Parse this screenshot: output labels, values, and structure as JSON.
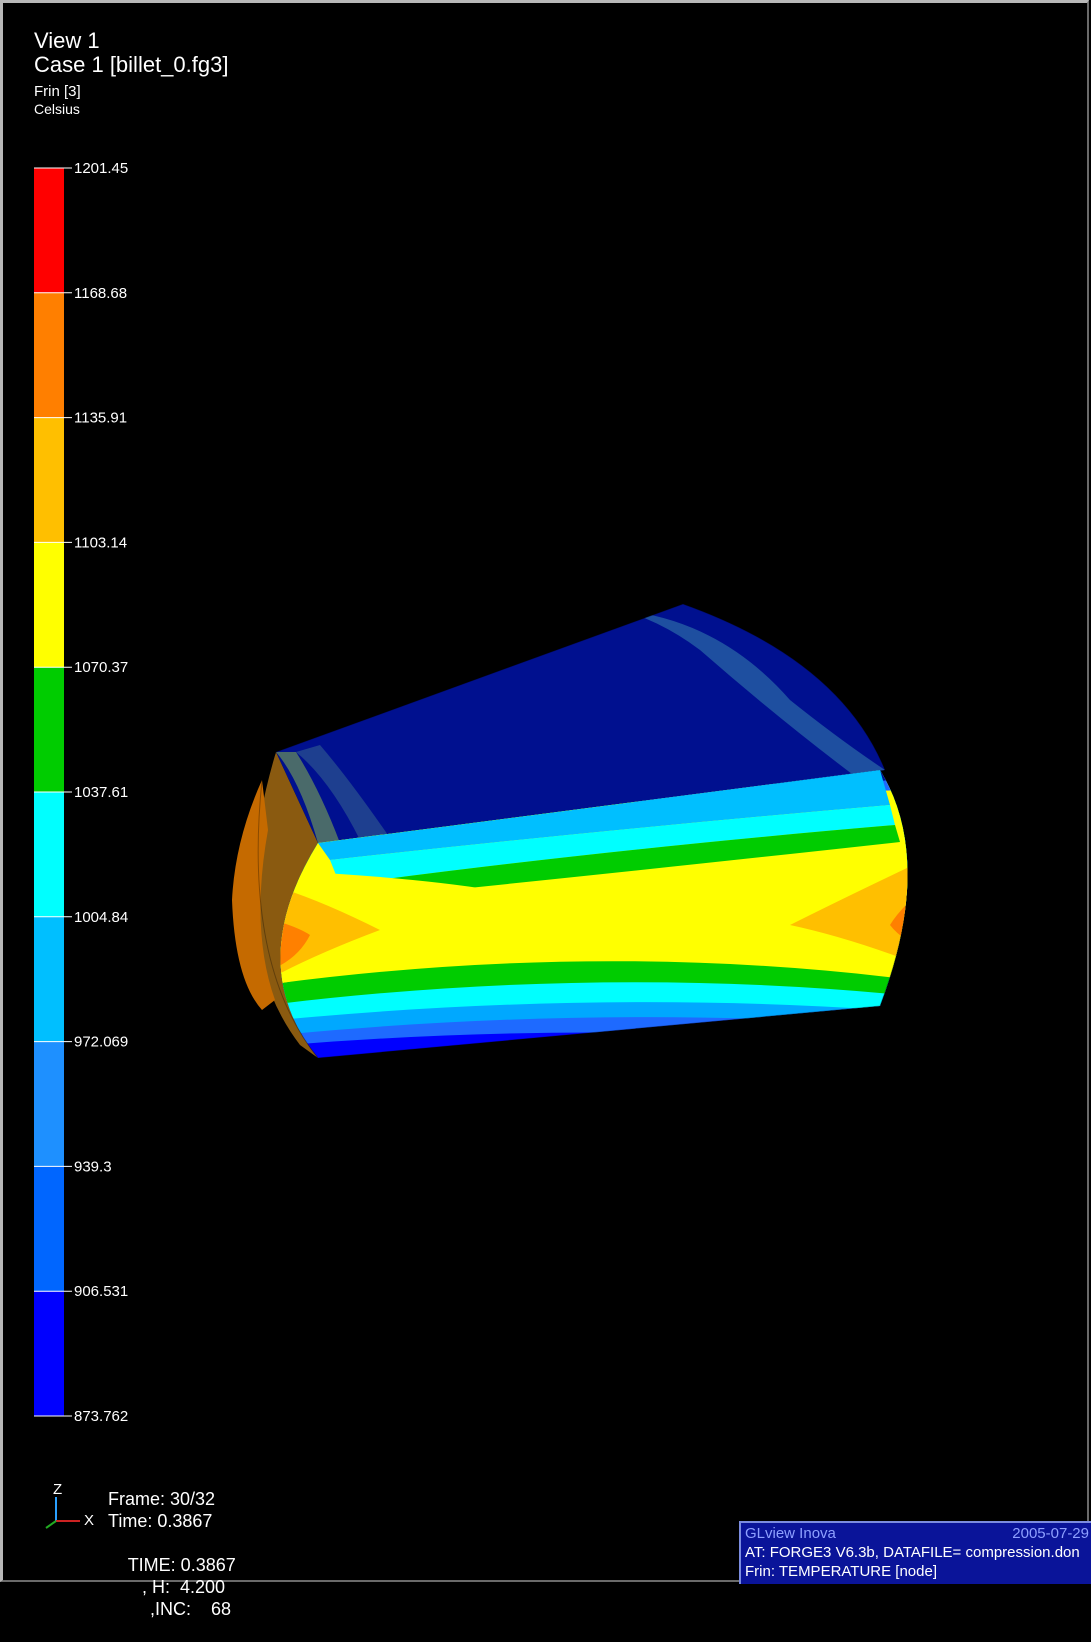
{
  "view": {
    "title": "View 1",
    "case_title": "Case 1  [billet_0.fg3]",
    "field_name": "Frin [3]",
    "units": "Celsius"
  },
  "legend": {
    "values": [
      "1201.45",
      "1168.68",
      "1135.91",
      "1103.14",
      "1070.37",
      "1037.61",
      "1004.84",
      "972.069",
      "939.3",
      "906.531",
      "873.762"
    ],
    "colors": [
      "#ff0000",
      "#ff7f00",
      "#ffbf00",
      "#ffff00",
      "#00cc00",
      "#00ffff",
      "#00bfff",
      "#1e90ff",
      "#0066ff",
      "#0000ff"
    ]
  },
  "axes": {
    "z_label": "Z",
    "x_label": "X"
  },
  "frame_info": {
    "frame": "Frame: 30/32",
    "time": "Time: 0.3867",
    "time_upper": "TIME: 0.3867",
    "h": ", H:  4.200",
    "inc": ",INC:    68"
  },
  "info_panel": {
    "app": "GLview Inova",
    "date": "2005-07-29",
    "at_line": "AT:   FORGE3 V6.3b, DATAFILE= compression.don",
    "frin_line": "Frin:  TEMPERATURE [node]"
  },
  "model": {
    "description_colors": {
      "top_face": "#000f8f",
      "hot_core": "#ffff00",
      "edge_hot": "#ff8c00"
    }
  }
}
